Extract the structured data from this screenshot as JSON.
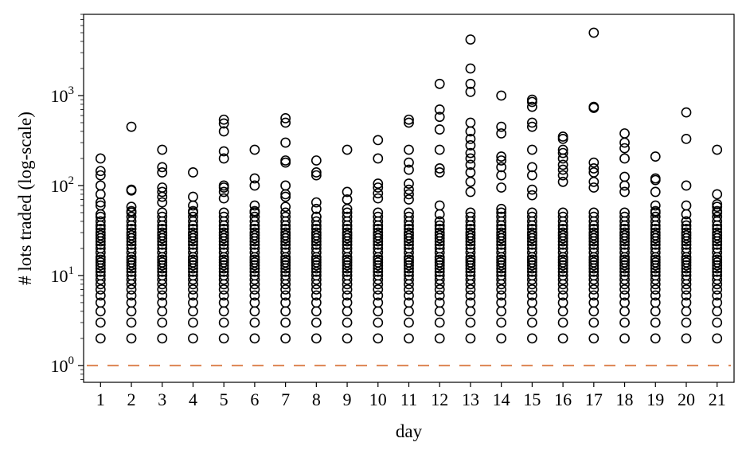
{
  "chart_data": {
    "type": "scatter",
    "title": "",
    "xlabel": "day",
    "ylabel": "# lots traded (log-scale)",
    "x_categories": [
      "1",
      "2",
      "3",
      "4",
      "5",
      "6",
      "7",
      "8",
      "9",
      "10",
      "11",
      "12",
      "13",
      "14",
      "15",
      "16",
      "17",
      "18",
      "19",
      "20",
      "21"
    ],
    "y_scale": "log",
    "ylim": [
      0.65,
      8000
    ],
    "y_tick_labels": [
      "10^0",
      "10^1",
      "10^2",
      "10^3"
    ],
    "y_tick_values": [
      1,
      10,
      100,
      1000
    ],
    "grid": false,
    "legend": "none",
    "reference_line": {
      "y": 1,
      "style": "dashed",
      "color": "#dd8452"
    },
    "marker": "open-circle",
    "marker_color": "#000000",
    "days": [
      {
        "day": 1,
        "max_dense": 48,
        "outliers": [
          60,
          65,
          80,
          100,
          130,
          145,
          200
        ]
      },
      {
        "day": 2,
        "max_dense": 52,
        "outliers": [
          58,
          88,
          90,
          450
        ]
      },
      {
        "day": 3,
        "max_dense": 65,
        "outliers": [
          75,
          85,
          95,
          140,
          160,
          250
        ]
      },
      {
        "day": 4,
        "max_dense": 52,
        "outliers": [
          60,
          75,
          140
        ]
      },
      {
        "day": 5,
        "max_dense": 72,
        "outliers": [
          85,
          95,
          100,
          200,
          240,
          400,
          490,
          540
        ]
      },
      {
        "day": 6,
        "max_dense": 52,
        "outliers": [
          60,
          100,
          120,
          250
        ]
      },
      {
        "day": 7,
        "max_dense": 58,
        "outliers": [
          75,
          80,
          100,
          180,
          190,
          300,
          500,
          560
        ]
      },
      {
        "day": 8,
        "max_dense": 45,
        "outliers": [
          55,
          65,
          130,
          140,
          190
        ]
      },
      {
        "day": 9,
        "max_dense": 55,
        "outliers": [
          70,
          85,
          250
        ]
      },
      {
        "day": 10,
        "max_dense": 72,
        "outliers": [
          82,
          95,
          105,
          200,
          320
        ]
      },
      {
        "day": 11,
        "max_dense": 70,
        "outliers": [
          80,
          90,
          105,
          150,
          180,
          250,
          500,
          540
        ]
      },
      {
        "day": 12,
        "max_dense": 40,
        "outliers": [
          48,
          60,
          140,
          155,
          250,
          420,
          580,
          700,
          1350
        ]
      },
      {
        "day": 13,
        "max_dense": 85,
        "outliers": [
          110,
          140,
          170,
          200,
          230,
          280,
          330,
          400,
          500,
          1100,
          1350,
          2000,
          4200
        ]
      },
      {
        "day": 14,
        "max_dense": 55,
        "outliers": [
          95,
          130,
          160,
          190,
          210,
          380,
          450,
          1000
        ]
      },
      {
        "day": 15,
        "max_dense": 78,
        "outliers": [
          90,
          130,
          160,
          250,
          450,
          500,
          750,
          850,
          900
        ]
      },
      {
        "day": 16,
        "max_dense": 110,
        "outliers": [
          130,
          150,
          170,
          200,
          230,
          250,
          330,
          350
        ]
      },
      {
        "day": 17,
        "max_dense": 95,
        "outliers": [
          110,
          140,
          155,
          180,
          730,
          750,
          5000
        ]
      },
      {
        "day": 18,
        "max_dense": 85,
        "outliers": [
          100,
          125,
          200,
          260,
          300,
          380
        ]
      },
      {
        "day": 19,
        "max_dense": 52,
        "outliers": [
          60,
          85,
          115,
          120,
          210
        ]
      },
      {
        "day": 20,
        "max_dense": 40,
        "outliers": [
          48,
          60,
          100,
          330,
          650
        ]
      },
      {
        "day": 21,
        "max_dense": 52,
        "outliers": [
          58,
          62,
          80,
          250
        ]
      }
    ]
  }
}
